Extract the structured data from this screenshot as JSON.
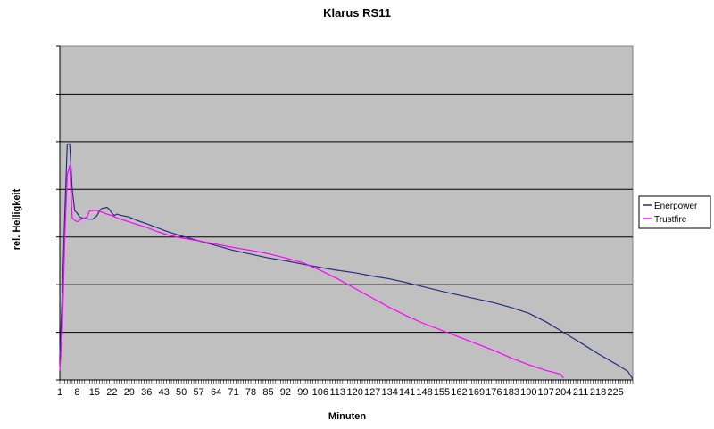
{
  "chart_data": {
    "type": "line",
    "title": "Klarus RS11",
    "xlabel": "Minuten",
    "ylabel": "rel. Helligkeit",
    "xlim": [
      1,
      232
    ],
    "ylim": [
      0,
      7
    ],
    "x_tick_labels": [
      "1",
      "8",
      "15",
      "22",
      "29",
      "36",
      "43",
      "50",
      "57",
      "64",
      "71",
      "78",
      "85",
      "92",
      "99",
      "106",
      "113",
      "120",
      "127",
      "134",
      "141",
      "148",
      "155",
      "162",
      "169",
      "176",
      "183",
      "190",
      "197",
      "204",
      "211",
      "218",
      "225"
    ],
    "grid": true,
    "legend_position": "right",
    "series": [
      {
        "name": "Enerpower",
        "color": "#2b2b7f",
        "x": [
          1,
          2,
          3,
          4,
          5,
          6,
          7,
          8,
          9,
          10,
          12,
          14,
          15,
          16,
          17,
          18,
          20,
          21,
          22,
          23,
          24,
          26,
          29,
          32,
          36,
          40,
          44,
          50,
          57,
          64,
          71,
          78,
          85,
          92,
          99,
          106,
          113,
          120,
          127,
          134,
          141,
          148,
          155,
          162,
          169,
          176,
          183,
          190,
          197,
          204,
          211,
          218,
          225,
          230,
          231,
          232
        ],
        "values": [
          0.5,
          1.8,
          3.5,
          4.95,
          4.95,
          4.0,
          3.55,
          3.5,
          3.42,
          3.4,
          3.38,
          3.37,
          3.4,
          3.45,
          3.55,
          3.6,
          3.62,
          3.58,
          3.5,
          3.45,
          3.48,
          3.45,
          3.42,
          3.35,
          3.28,
          3.2,
          3.12,
          3.02,
          2.92,
          2.82,
          2.72,
          2.64,
          2.56,
          2.5,
          2.43,
          2.36,
          2.3,
          2.25,
          2.18,
          2.12,
          2.04,
          1.95,
          1.86,
          1.78,
          1.7,
          1.62,
          1.52,
          1.4,
          1.22,
          1.0,
          0.78,
          0.55,
          0.34,
          0.18,
          0.1,
          0.02
        ]
      },
      {
        "name": "Trustfire",
        "color": "#ff00ff",
        "x": [
          1,
          2,
          3,
          4,
          5,
          6,
          7,
          8,
          9,
          10,
          12,
          13,
          14,
          15,
          16,
          18,
          20,
          22,
          24,
          27,
          30,
          33,
          36,
          40,
          44,
          50,
          57,
          64,
          71,
          78,
          85,
          92,
          99,
          106,
          113,
          120,
          127,
          134,
          141,
          148,
          155,
          162,
          169,
          176,
          183,
          190,
          197,
          203,
          204
        ],
        "values": [
          0.2,
          1.0,
          3.0,
          4.3,
          4.5,
          3.4,
          3.35,
          3.32,
          3.35,
          3.38,
          3.42,
          3.55,
          3.55,
          3.56,
          3.55,
          3.52,
          3.48,
          3.45,
          3.4,
          3.35,
          3.3,
          3.25,
          3.2,
          3.12,
          3.05,
          2.98,
          2.92,
          2.85,
          2.78,
          2.72,
          2.65,
          2.56,
          2.46,
          2.3,
          2.12,
          1.92,
          1.72,
          1.52,
          1.34,
          1.18,
          1.04,
          0.9,
          0.76,
          0.62,
          0.46,
          0.32,
          0.2,
          0.12,
          0.04
        ]
      }
    ]
  }
}
